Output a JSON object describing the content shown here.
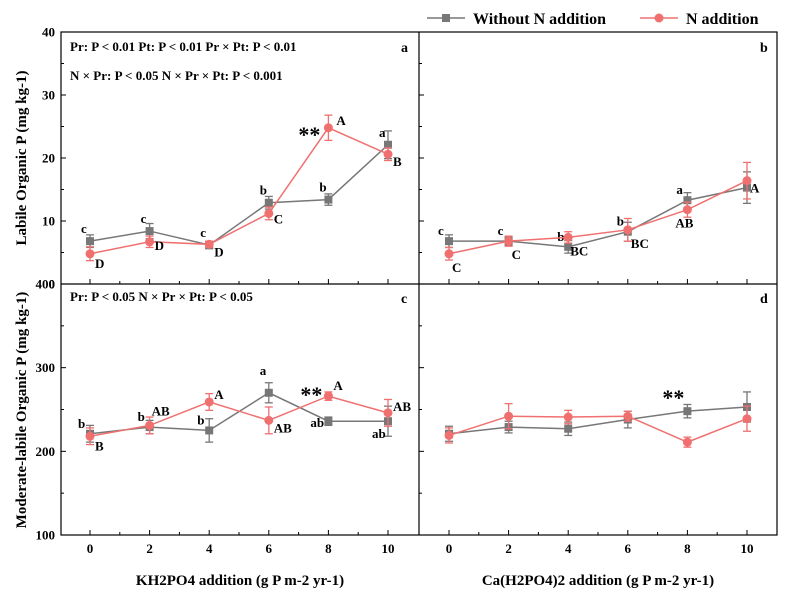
{
  "legend": {
    "series": [
      {
        "name": "Without N addition",
        "color": "#777777",
        "marker": "square"
      },
      {
        "name": "N addition",
        "color": "#f07070",
        "marker": "circle"
      }
    ],
    "placement": "top-right"
  },
  "chart_data": [
    {
      "panel": "a",
      "type": "line",
      "x": [
        0,
        2,
        4,
        6,
        8,
        10
      ],
      "ylim": [
        0,
        40
      ],
      "yticks": [
        0,
        10,
        20,
        30,
        40
      ],
      "ylabel": "Labile Organic P (mg kg-1)",
      "stats": [
        "Pr: P < 0.01    Pt: P < 0.01    Pr × Pt: P  < 0.01",
        "N × Pr: P < 0.05    N × Pr × Pt: P  < 0.001"
      ],
      "series": [
        {
          "name": "Without N addition",
          "values": [
            6.8,
            8.4,
            6.2,
            12.9,
            13.4,
            22.1
          ],
          "err": [
            1.0,
            1.2,
            0.6,
            1.0,
            0.9,
            2.2
          ],
          "letters": [
            "c",
            "c",
            "c",
            "b",
            "b",
            "a"
          ]
        },
        {
          "name": "N addition",
          "values": [
            4.8,
            6.7,
            6.3,
            11.2,
            24.8,
            20.6
          ],
          "err": [
            1.1,
            0.9,
            0.5,
            1.0,
            2.0,
            1.0
          ],
          "letters": [
            "D",
            "D",
            "D",
            "C",
            "A",
            "B"
          ]
        }
      ],
      "significance": [
        {
          "x": 8,
          "label": "**"
        }
      ]
    },
    {
      "panel": "b",
      "type": "line",
      "x": [
        0,
        2,
        4,
        6,
        8,
        10
      ],
      "ylim": [
        0,
        40
      ],
      "yticks": [
        0,
        10,
        20,
        30,
        40
      ],
      "series": [
        {
          "name": "Without N addition",
          "values": [
            6.8,
            6.8,
            5.9,
            8.3,
            13.3,
            15.3
          ],
          "err": [
            1.0,
            0.7,
            1.0,
            1.5,
            1.2,
            2.5
          ],
          "letters": [
            "c",
            "c",
            "b",
            "b",
            "a",
            ""
          ]
        },
        {
          "name": "N addition",
          "values": [
            4.8,
            6.8,
            7.4,
            8.6,
            11.8,
            16.4
          ],
          "err": [
            1.0,
            0.8,
            0.9,
            1.8,
            1.2,
            2.9
          ],
          "letters": [
            "C",
            "C",
            "BC",
            "BC",
            "AB",
            "A"
          ]
        }
      ]
    },
    {
      "panel": "c",
      "type": "line",
      "x": [
        0,
        2,
        4,
        6,
        8,
        10
      ],
      "ylim": [
        100,
        400
      ],
      "yticks": [
        100,
        200,
        300,
        400
      ],
      "ylabel": "Moderate-labile Organic P (mg kg-1)",
      "xlabel": "KH2PO4 addition (g P m-2 yr-1)",
      "stats": [
        "Pr: P < 0.05    N × Pr × Pt: P  < 0.05"
      ],
      "series": [
        {
          "name": "Without N addition",
          "values": [
            221,
            229,
            225,
            270,
            236,
            236
          ],
          "err": [
            10,
            8,
            14,
            12,
            5,
            18
          ],
          "letters": [
            "b",
            "b",
            "b",
            "a",
            "ab",
            "ab"
          ]
        },
        {
          "name": "N addition",
          "values": [
            218,
            231,
            259,
            237,
            266,
            246
          ],
          "err": [
            10,
            10,
            10,
            16,
            5,
            16
          ],
          "letters": [
            "B",
            "AB",
            "A",
            "AB",
            "A",
            "AB"
          ]
        }
      ],
      "significance": [
        {
          "x": 8,
          "label": "**"
        }
      ]
    },
    {
      "panel": "d",
      "type": "line",
      "x": [
        0,
        2,
        4,
        6,
        8,
        10
      ],
      "ylim": [
        100,
        400
      ],
      "yticks": [
        100,
        200,
        300,
        400
      ],
      "xlabel": "Ca(H2PO4)2 addition (g P m-2 yr-1)",
      "series": [
        {
          "name": "Without N addition",
          "values": [
            221,
            229,
            227,
            238,
            248,
            253
          ],
          "err": [
            9,
            7,
            8,
            10,
            8,
            18
          ],
          "letters": [
            "",
            "",
            "",
            "",
            "",
            ""
          ]
        },
        {
          "name": "N addition",
          "values": [
            219,
            242,
            241,
            242,
            211,
            239
          ],
          "err": [
            9,
            15,
            8,
            6,
            6,
            15
          ],
          "letters": [
            "",
            "",
            "",
            "",
            "",
            ""
          ]
        }
      ],
      "significance": [
        {
          "x": 8,
          "label": "**"
        }
      ]
    }
  ]
}
